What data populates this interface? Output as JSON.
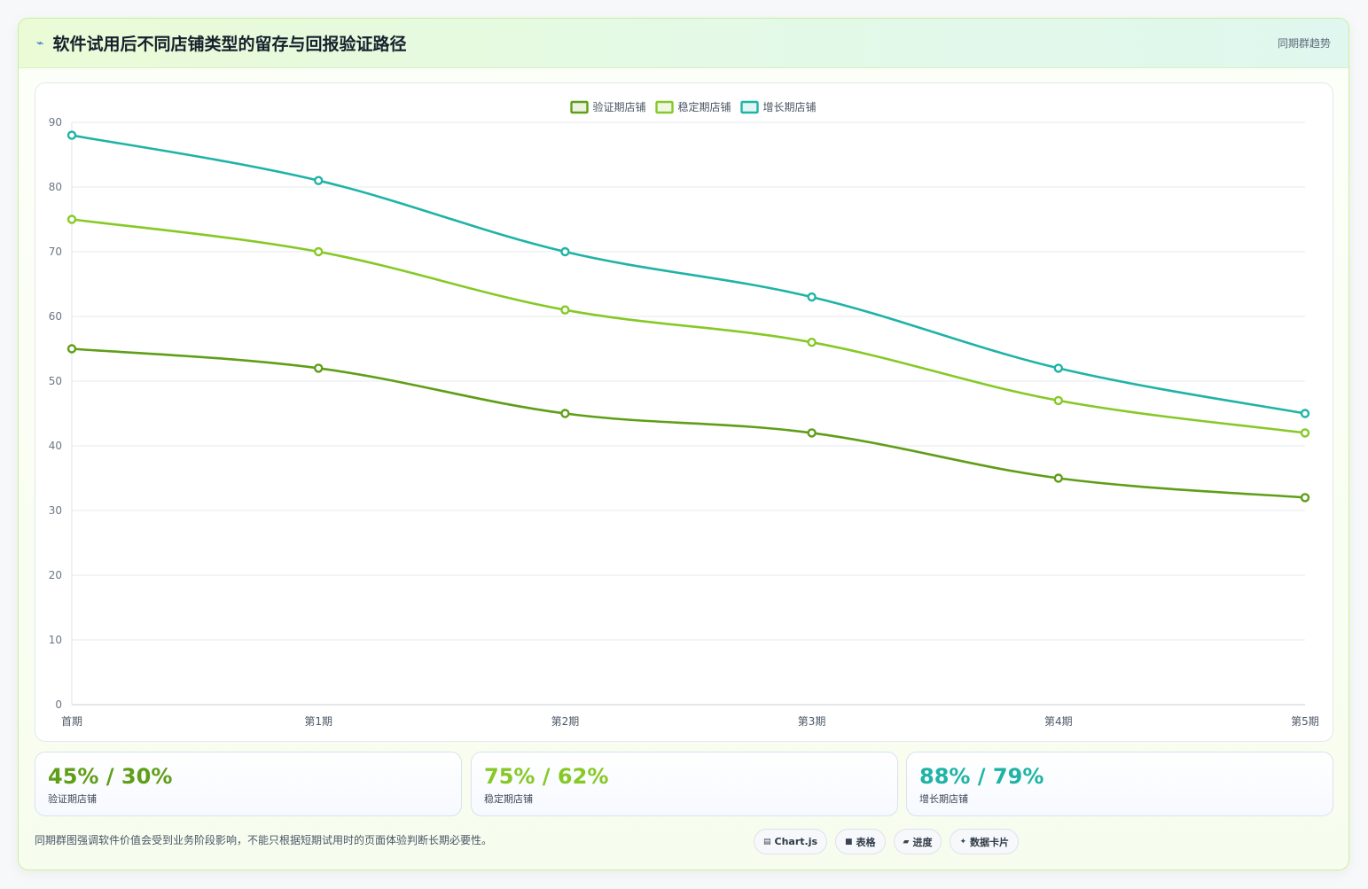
{
  "header": {
    "icon": "lightning-icon",
    "title": "软件试用后不同店铺类型的留存与回报验证路径",
    "tag": "同期群趋势"
  },
  "chart_data": {
    "type": "line",
    "categories": [
      "首期",
      "第1期",
      "第2期",
      "第3期",
      "第4期",
      "第5期"
    ],
    "series": [
      {
        "name": "验证期店铺",
        "color": "#5f9e17",
        "values": [
          55,
          52,
          45,
          42,
          35,
          32
        ]
      },
      {
        "name": "稳定期店铺",
        "color": "#86c926",
        "values": [
          75,
          70,
          61,
          56,
          47,
          42
        ]
      },
      {
        "name": "增长期店铺",
        "color": "#1fb3a6",
        "values": [
          88,
          81,
          70,
          63,
          52,
          45
        ]
      }
    ],
    "ylim": [
      0,
      90
    ],
    "yticks": [
      0,
      10,
      20,
      30,
      40,
      50,
      60,
      70,
      80,
      90
    ],
    "grid": true,
    "legend": "top-center",
    "title": "",
    "xlabel": "",
    "ylabel": ""
  },
  "stats": [
    {
      "value": "45% / 30%",
      "label": "验证期店铺",
      "color": "#5f9e17"
    },
    {
      "value": "75% / 62%",
      "label": "稳定期店铺",
      "color": "#86c926"
    },
    {
      "value": "88% / 79%",
      "label": "增长期店铺",
      "color": "#1fb3a6"
    }
  ],
  "footnote": "同期群图强调软件价值会受到业务阶段影响，不能只根据短期试用时的页面体验判断长期必要性。",
  "tools": [
    {
      "icon": "chart-icon",
      "glyph": "▤",
      "label": "Chart.js"
    },
    {
      "icon": "table-icon",
      "glyph": "■",
      "label": "表格"
    },
    {
      "icon": "progress-icon",
      "glyph": "▰",
      "label": "进度"
    },
    {
      "icon": "sparkle-icon",
      "glyph": "✦",
      "label": "数据卡片"
    }
  ]
}
